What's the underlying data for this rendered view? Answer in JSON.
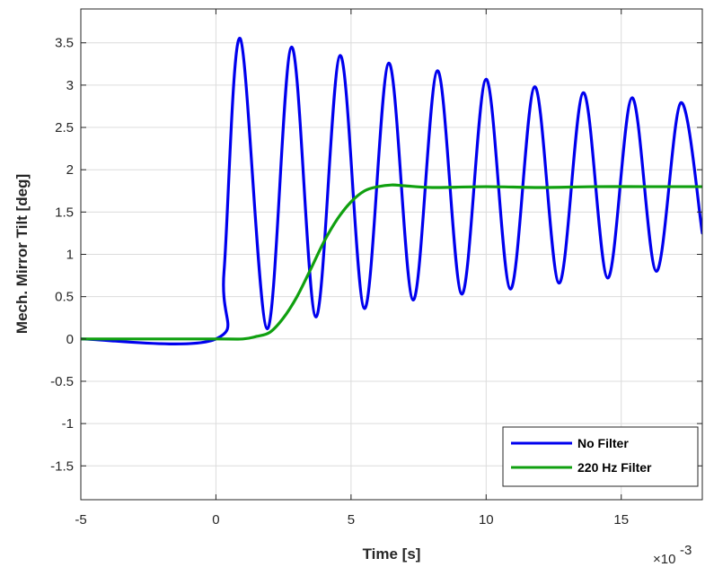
{
  "chart_data": {
    "type": "line",
    "title": "",
    "xlabel": "Time [s]",
    "ylabel": "Mech. Mirror Tilt [deg]",
    "x_multiplier": "×10",
    "x_multiplier_exp": "-3",
    "xlim": [
      -5,
      18
    ],
    "ylim": [
      -1.9,
      3.9
    ],
    "xticks": [
      -5,
      0,
      5,
      10,
      15
    ],
    "yticks": [
      -1.5,
      -1,
      -0.5,
      0,
      0.5,
      1,
      1.5,
      2,
      2.5,
      3,
      3.5
    ],
    "xtick_labels": [
      "-5",
      "0",
      "5",
      "10",
      "15"
    ],
    "ytick_labels": [
      "-1.5",
      "-1",
      "-0.5",
      "0",
      "0.5",
      "1",
      "1.5",
      "2",
      "2.5",
      "3",
      "3.5"
    ],
    "grid": true,
    "legend_position": "bottom-right",
    "series": [
      {
        "name": "No Filter",
        "color": "#0000ee",
        "x": [
          -5,
          0,
          0.3,
          0.9,
          1.9,
          2.8,
          3.7,
          4.6,
          5.5,
          6.4,
          7.3,
          8.2,
          9.1,
          10.0,
          10.9,
          11.8,
          12.7,
          13.6,
          14.5,
          15.4,
          16.3,
          17.2,
          18.0
        ],
        "y": [
          0,
          0,
          0.8,
          3.55,
          0.12,
          3.45,
          0.26,
          3.35,
          0.36,
          3.26,
          0.46,
          3.17,
          0.53,
          3.07,
          0.59,
          2.98,
          0.66,
          2.91,
          0.72,
          2.85,
          0.8,
          2.79,
          1.25
        ]
      },
      {
        "name": "220 Hz Filter",
        "color": "#10a010",
        "x": [
          -5,
          0,
          1,
          1.5,
          2,
          2.5,
          3,
          3.5,
          4,
          4.5,
          5,
          5.5,
          6,
          6.5,
          7,
          8,
          10,
          12,
          14,
          16,
          18
        ],
        "y": [
          0,
          0,
          0,
          0.03,
          0.08,
          0.25,
          0.5,
          0.82,
          1.15,
          1.42,
          1.62,
          1.75,
          1.8,
          1.82,
          1.81,
          1.79,
          1.8,
          1.79,
          1.8,
          1.8,
          1.8
        ]
      }
    ]
  }
}
